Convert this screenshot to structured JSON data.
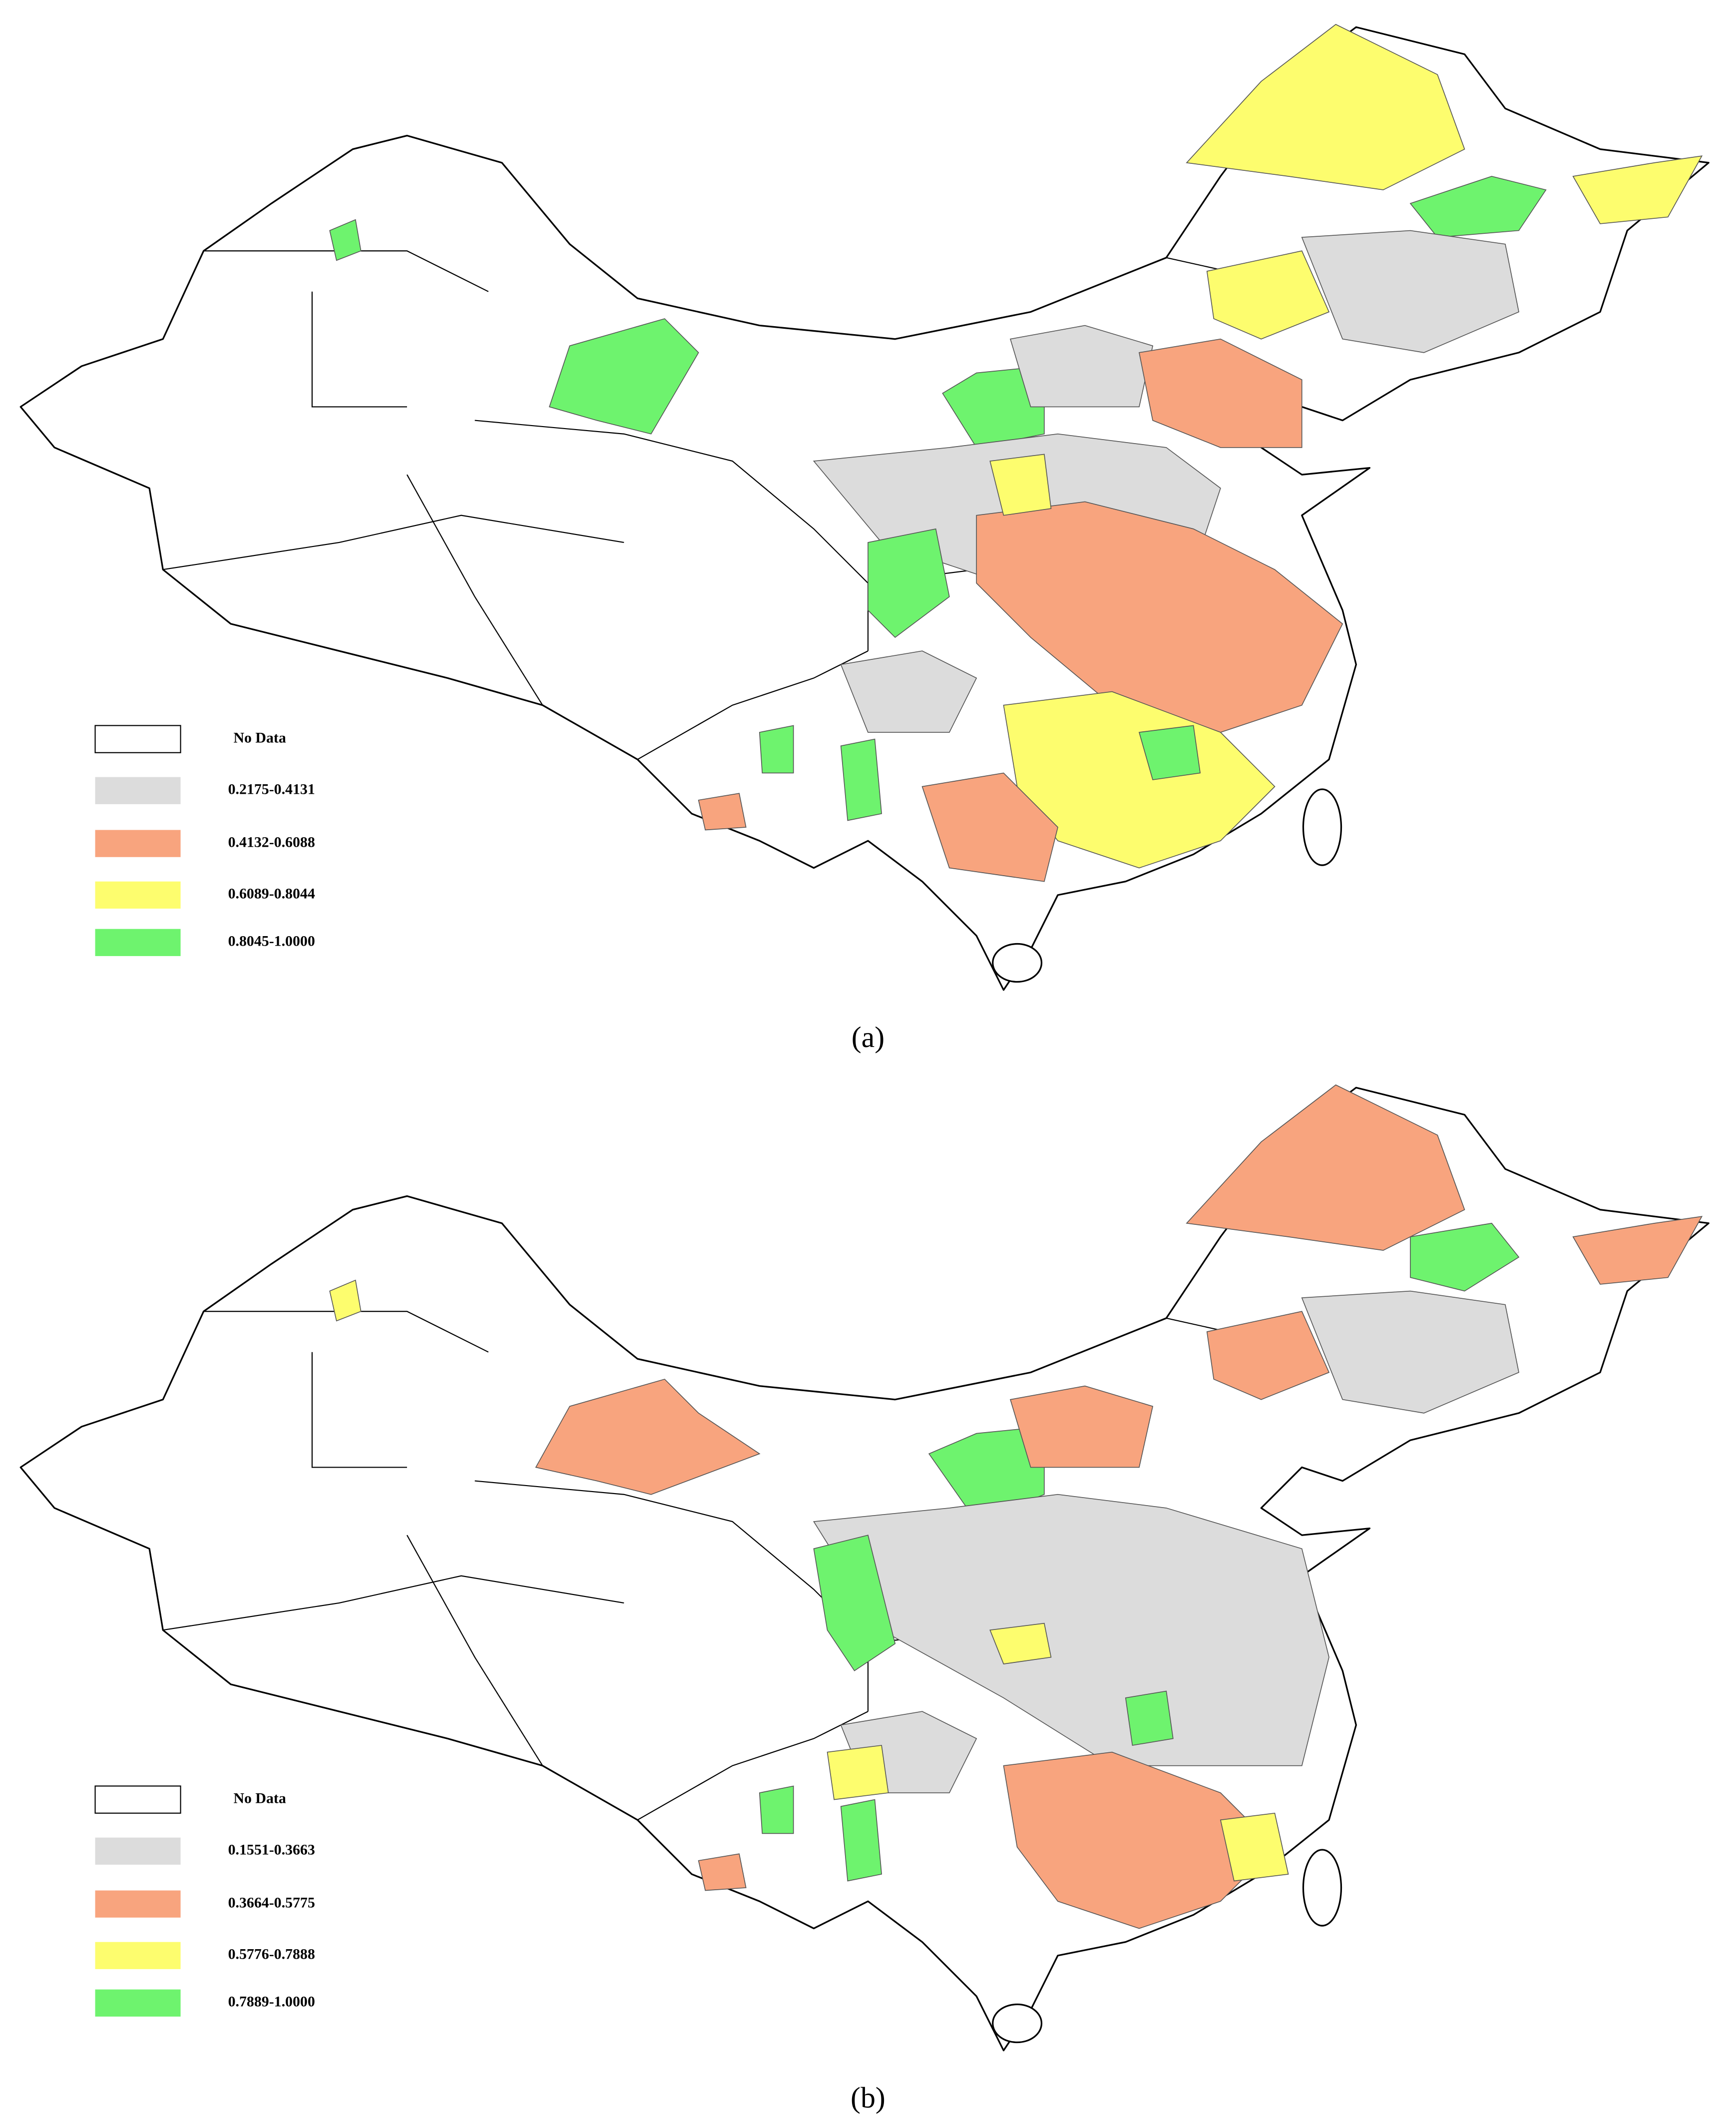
{
  "figure": {
    "panels": [
      {
        "label": "(a)",
        "legend": [
          {
            "label": "No Data",
            "color": "#ffffff"
          },
          {
            "label": "0.2175-0.4131",
            "color": "#dcdcdc"
          },
          {
            "label": "0.4132-0.6088",
            "color": "#f8a47e"
          },
          {
            "label": "0.6089-0.8044",
            "color": "#fdfd6e"
          },
          {
            "label": "0.8045-1.0000",
            "color": "#6ef36e"
          }
        ]
      },
      {
        "label": "(b)",
        "legend": [
          {
            "label": "No Data",
            "color": "#ffffff"
          },
          {
            "label": "0.1551-0.3663",
            "color": "#dcdcdc"
          },
          {
            "label": "0.3664-0.5775",
            "color": "#f8a47e"
          },
          {
            "label": "0.5776-0.7888",
            "color": "#fdfd6e"
          },
          {
            "label": "0.7889-1.0000",
            "color": "#6ef36e"
          }
        ]
      }
    ]
  }
}
